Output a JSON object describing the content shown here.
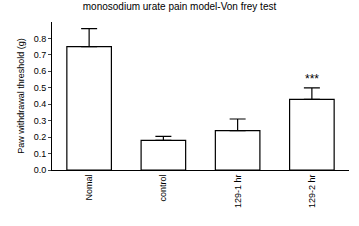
{
  "chart_data": {
    "type": "bar",
    "title": "monosodium urate pain model-Von frey test",
    "y_label": "Paw withdrawal threshold (g)",
    "categories": [
      "Nomal",
      "control",
      "129-1 hr",
      "129-2 hr"
    ],
    "values": [
      0.75,
      0.18,
      0.24,
      0.43
    ],
    "errors": [
      0.11,
      0.025,
      0.07,
      0.07
    ],
    "color": "#ffffff",
    "ylim": [
      0,
      0.9
    ],
    "yticks": [
      {
        "value": 0,
        "label": "0.0"
      },
      0.1,
      0.2,
      0.3,
      0.4,
      0.5,
      0.6,
      0.7,
      0.8
    ],
    "grid": false,
    "annotations": [
      {
        "text": "***",
        "category": "129-2 hr"
      }
    ]
  }
}
